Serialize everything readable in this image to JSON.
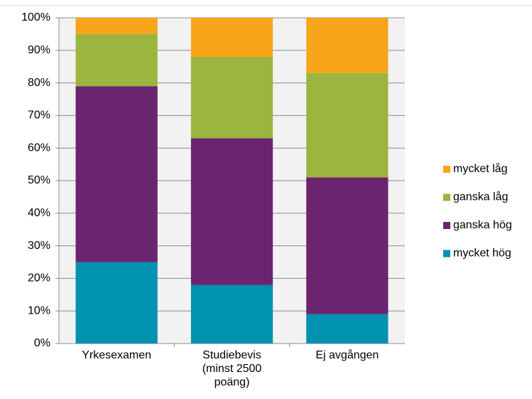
{
  "chart_data": {
    "type": "stacked_bar",
    "categories": [
      "Yrkesexamen",
      "Studiebevis (minst 2500 poäng)",
      "Ej avgången"
    ],
    "series": [
      {
        "name": "mycket hög",
        "color": "#0092ae",
        "values": [
          25,
          18,
          9
        ]
      },
      {
        "name": "ganska hög",
        "color": "#6b2470",
        "values": [
          54,
          45,
          42
        ]
      },
      {
        "name": "ganska låg",
        "color": "#9bb53e",
        "values": [
          16,
          25,
          32
        ]
      },
      {
        "name": "mycket låg",
        "color": "#f9a51a",
        "values": [
          5,
          12,
          17
        ]
      }
    ],
    "ylim": [
      0,
      100
    ],
    "yticks": [
      {
        "value": 0,
        "label": "0%"
      },
      {
        "value": 10,
        "label": "10%"
      },
      {
        "value": 20,
        "label": "20%"
      },
      {
        "value": 30,
        "label": "30%"
      },
      {
        "value": 40,
        "label": "40%"
      },
      {
        "value": 50,
        "label": "50%"
      },
      {
        "value": 60,
        "label": "60%"
      },
      {
        "value": 70,
        "label": "70%"
      },
      {
        "value": 80,
        "label": "80%"
      },
      {
        "value": 90,
        "label": "90%"
      },
      {
        "value": 100,
        "label": "100%"
      }
    ],
    "grid": true,
    "legend": "right"
  }
}
